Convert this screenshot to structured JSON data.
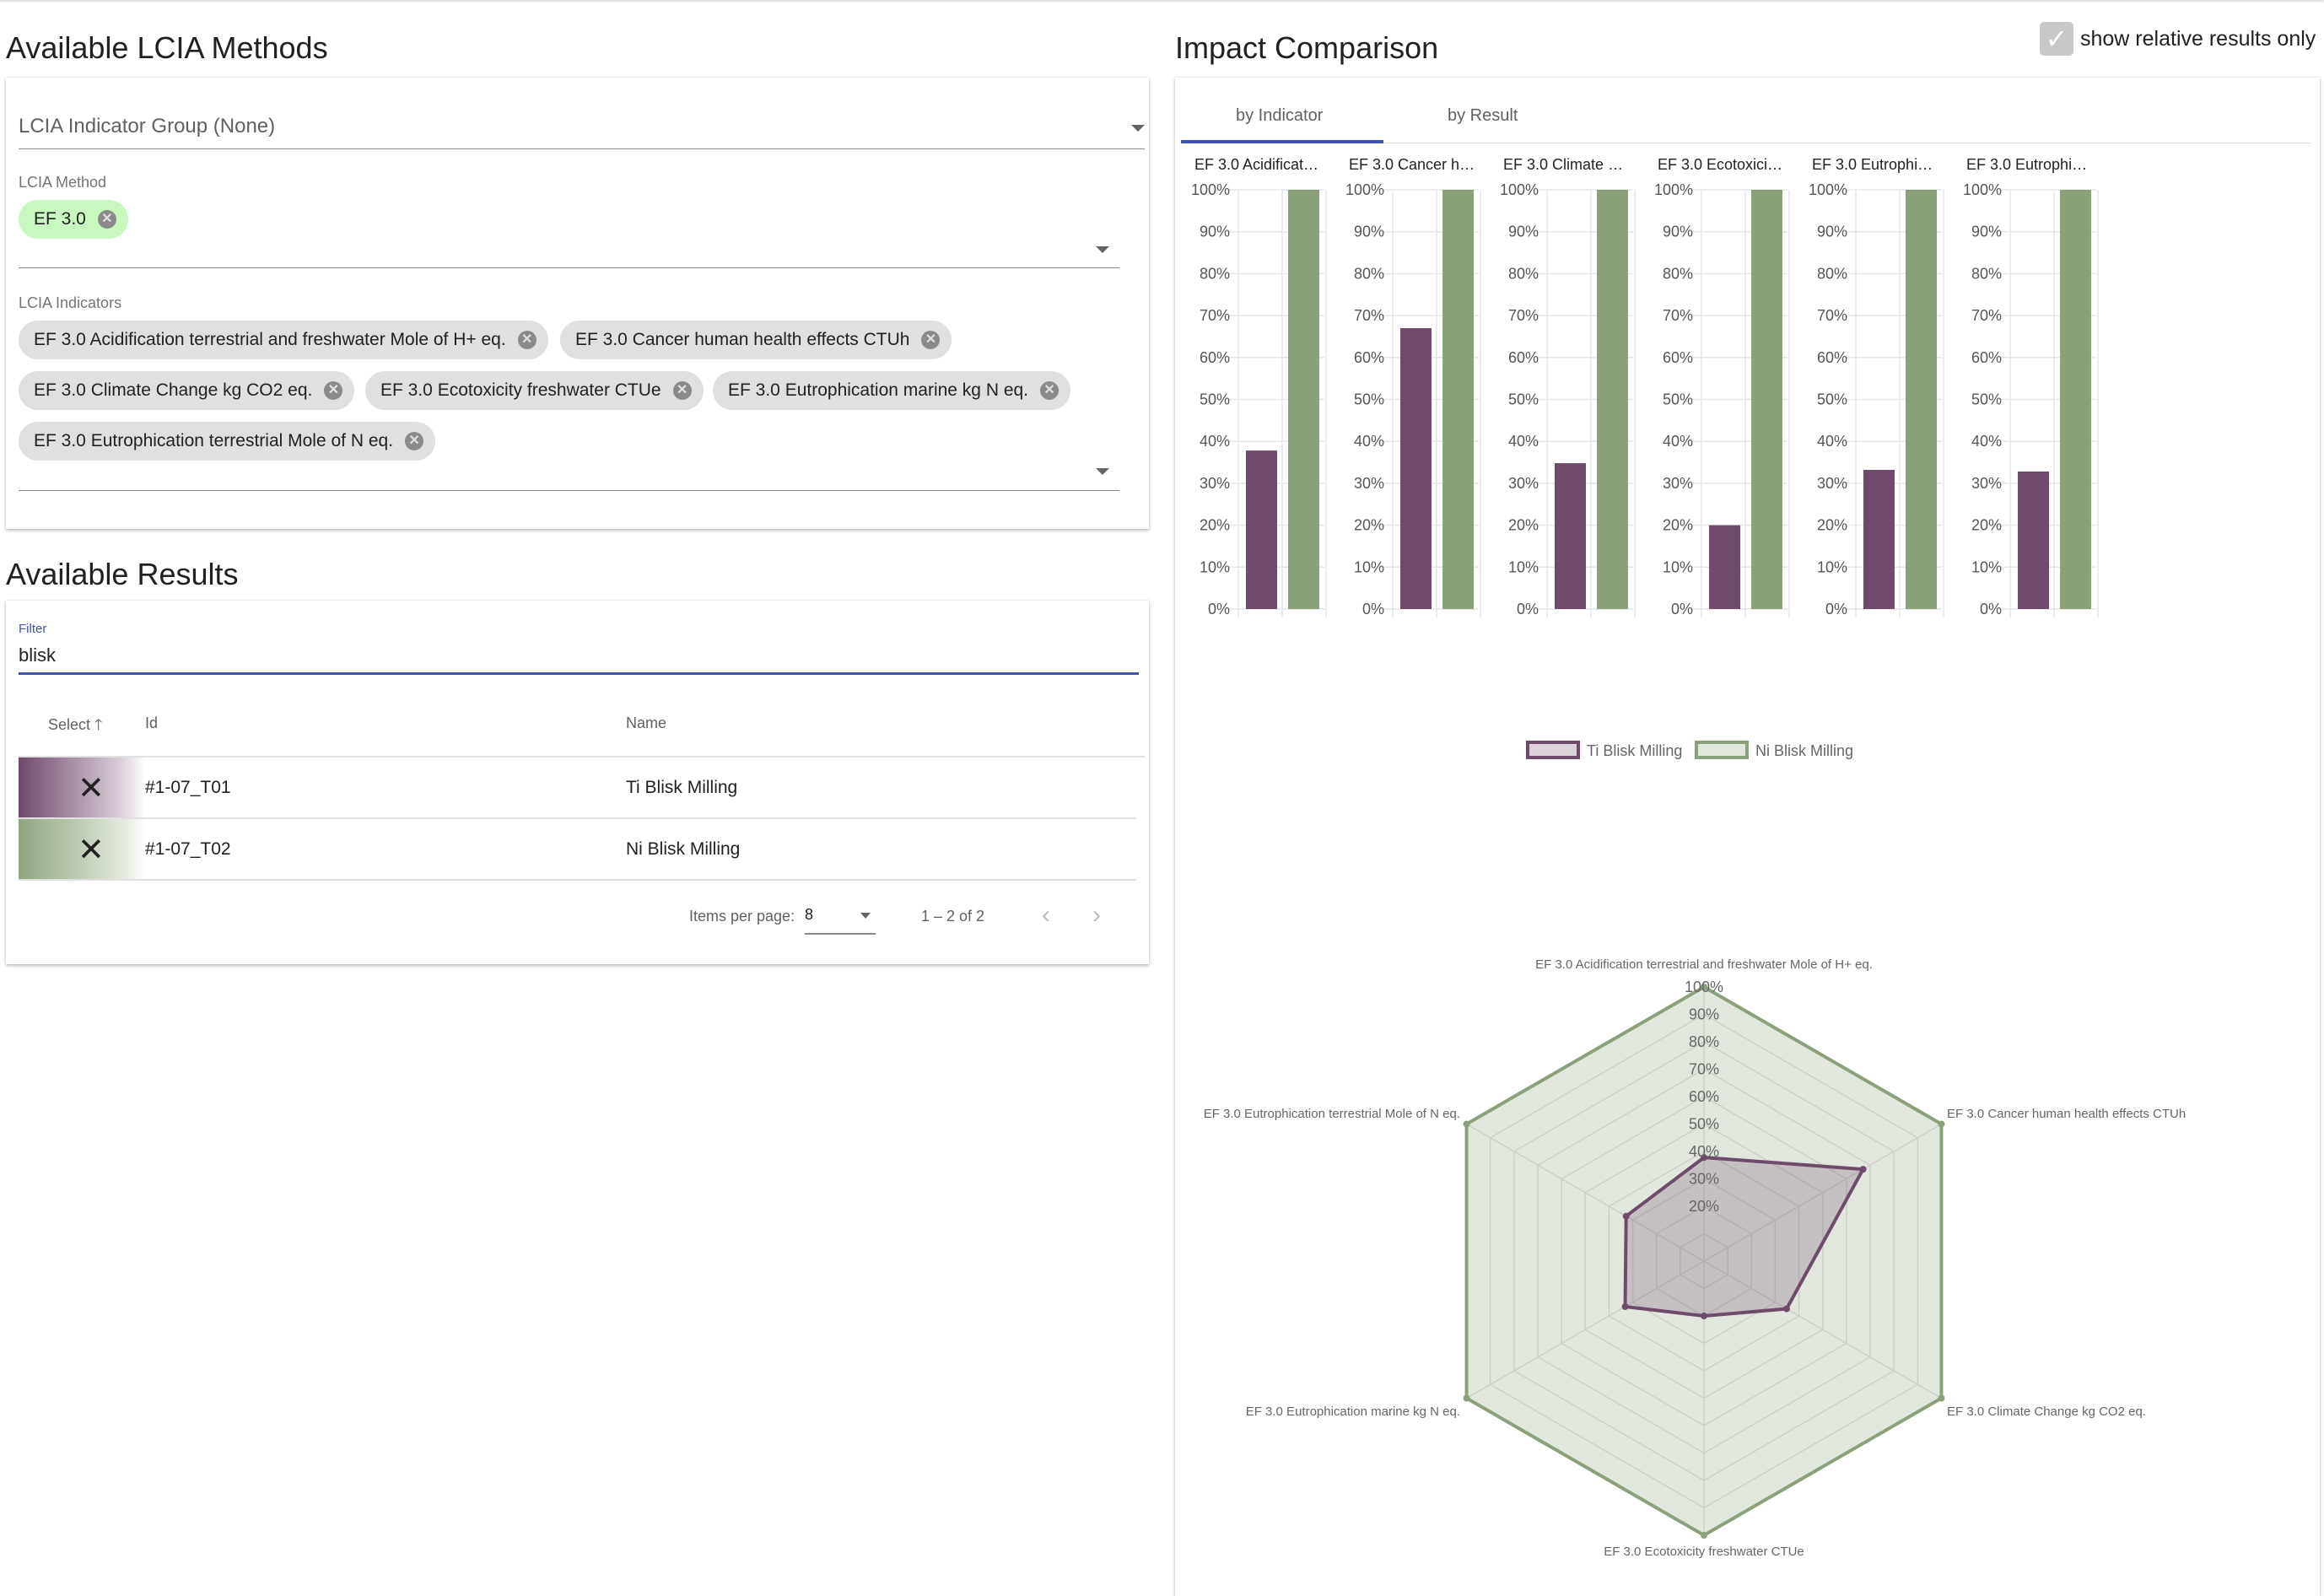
{
  "left": {
    "title": "Available LCIA Methods",
    "group_select": "LCIA Indicator Group (None)",
    "method_label": "LCIA Method",
    "method_chip": "EF 3.0",
    "indicators_label": "LCIA Indicators",
    "indicator_chips": [
      "EF 3.0 Acidification terrestrial and freshwater Mole of H+ eq.",
      "EF 3.0 Cancer human health effects CTUh",
      "EF 3.0 Climate Change kg CO2 eq.",
      "EF 3.0 Ecotoxicity freshwater CTUe",
      "EF 3.0 Eutrophication marine kg N eq.",
      "EF 3.0 Eutrophication terrestrial Mole of N eq."
    ],
    "results_title": "Available Results",
    "filter_label": "Filter",
    "filter_value": "blisk",
    "columns": {
      "select": "Select",
      "id": "Id",
      "name": "Name"
    },
    "rows": [
      {
        "mark": "✕",
        "id": "#1-07_T01",
        "name": "Ti Blisk Milling",
        "color": "#6e4a6b"
      },
      {
        "mark": "✕",
        "id": "#1-07_T02",
        "name": "Ni Blisk Milling",
        "color": "#8fa57f"
      }
    ],
    "paginator": {
      "items_label": "Items per page:",
      "items_value": "8",
      "range": "1 – 2 of 2"
    }
  },
  "right": {
    "title": "Impact Comparison",
    "relative_label": "show relative results only",
    "relative_checked": true,
    "tabs": [
      "by Indicator",
      "by Result"
    ],
    "active_tab": 0
  },
  "chart_data": [
    {
      "type": "bar",
      "titles": [
        "EF 3.0 Acidificat…",
        "EF 3.0 Cancer h…",
        "EF 3.0 Climate …",
        "EF 3.0 Ecotoxici…",
        "EF 3.0 Eutrophi…",
        "EF 3.0 Eutrophi…"
      ],
      "yticks": [
        "0%",
        "10%",
        "20%",
        "30%",
        "40%",
        "50%",
        "60%",
        "70%",
        "80%",
        "90%",
        "100%"
      ],
      "ylim": [
        0,
        100
      ],
      "series": [
        {
          "name": "Ti Blisk Milling",
          "color": "#6e4a6b",
          "values": [
            37.8,
            67,
            34.8,
            20,
            33.2,
            32.8
          ]
        },
        {
          "name": "Ni Blisk Milling",
          "color": "#8ba17c",
          "values": [
            100,
            100,
            100,
            100,
            100,
            100
          ]
        }
      ]
    },
    {
      "type": "radar",
      "axes": [
        "EF 3.0 Acidification terrestrial and freshwater Mole of H+ eq.",
        "EF 3.0 Cancer human health effects CTUh",
        "EF 3.0 Climate Change kg CO2 eq.",
        "EF 3.0 Ecotoxicity freshwater CTUe",
        "EF 3.0 Eutrophication marine kg N eq.",
        "EF 3.0 Eutrophication terrestrial Mole of N eq."
      ],
      "ticks": [
        "20%",
        "30%",
        "40%",
        "50%",
        "60%",
        "70%",
        "80%",
        "90%",
        "100%"
      ],
      "rlim": [
        0,
        100
      ],
      "series": [
        {
          "name": "Ti Blisk Milling",
          "color": "#6e4a6b",
          "values": [
            37.8,
            67,
            34.8,
            20,
            33.2,
            32.8
          ]
        },
        {
          "name": "Ni Blisk Milling",
          "color": "#8ba17c",
          "values": [
            100,
            100,
            100,
            100,
            100,
            100
          ]
        }
      ]
    }
  ]
}
